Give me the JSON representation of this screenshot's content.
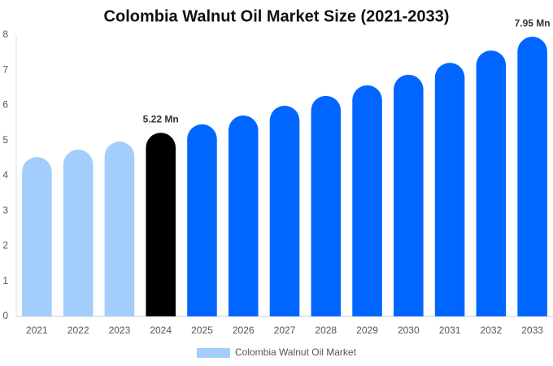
{
  "chart_data": {
    "type": "bar",
    "title": "Colombia Walnut Oil Market Size (2021-2033)",
    "categories": [
      "2021",
      "2022",
      "2023",
      "2024",
      "2025",
      "2026",
      "2027",
      "2028",
      "2029",
      "2030",
      "2031",
      "2032",
      "2033"
    ],
    "series": [
      {
        "name": "Colombia Walnut Oil Market",
        "color": "#a3cdfb",
        "values": [
          4.53,
          4.74,
          4.97,
          5.22,
          5.46,
          5.71,
          5.99,
          6.27,
          6.57,
          6.87,
          7.21,
          7.56,
          7.95
        ],
        "value_labels": [
          null,
          null,
          null,
          "5.22 Mn",
          null,
          null,
          null,
          null,
          null,
          null,
          null,
          null,
          "7.95 Mn"
        ],
        "colors": [
          "#a3cdfb",
          "#a3cdfb",
          "#a3cdfb",
          "#000000",
          "#0066ff",
          "#0066ff",
          "#0066ff",
          "#0066ff",
          "#0066ff",
          "#0066ff",
          "#0066ff",
          "#0066ff",
          "#0066ff"
        ]
      }
    ],
    "ylim": [
      0,
      8
    ],
    "yticks": [
      0,
      1,
      2,
      3,
      4,
      5,
      6,
      7,
      8
    ],
    "grid": false,
    "legend": "bottom"
  }
}
